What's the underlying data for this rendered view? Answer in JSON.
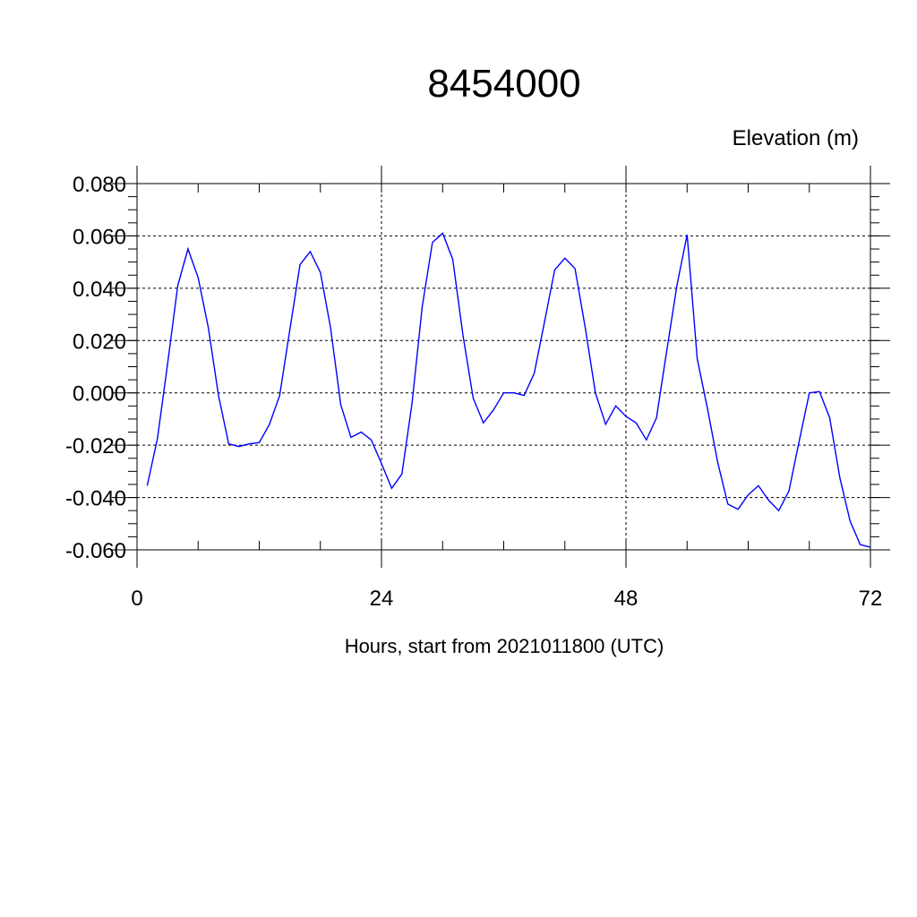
{
  "chart_data": {
    "type": "line",
    "title": "8454000",
    "ylabel": "Elevation (m)",
    "xlabel": "Hours, start from 2021011800 (UTC)",
    "xlim": [
      0,
      72
    ],
    "ylim": [
      -0.06,
      0.08
    ],
    "x_ticks": [
      0,
      24,
      48,
      72
    ],
    "x_tick_labels": [
      "0",
      "24",
      "48",
      "72"
    ],
    "y_ticks": [
      0.08,
      0.06,
      0.04,
      0.02,
      0.0,
      -0.02,
      -0.04,
      -0.06
    ],
    "y_tick_labels": [
      "0.080",
      "0.060",
      "0.040",
      "0.020",
      "0.000",
      "-0.020",
      "-0.040",
      "-0.060"
    ],
    "grid": true,
    "line_color": "#0000ff",
    "series": [
      {
        "x": [
          1,
          2,
          3,
          4,
          5,
          6,
          7,
          8,
          9,
          10,
          11,
          12,
          13,
          14,
          15,
          16,
          17,
          18,
          19,
          20,
          21,
          22,
          23,
          24,
          25,
          26,
          27,
          28,
          29,
          30,
          31,
          32,
          33,
          34,
          35,
          36,
          37,
          38,
          39,
          40,
          41,
          42,
          43,
          44,
          45,
          46,
          47,
          48,
          49,
          50,
          51,
          52,
          53,
          54,
          55,
          56,
          57,
          58,
          59,
          60,
          61,
          62,
          63,
          64,
          65,
          66,
          67,
          68,
          69,
          70,
          71,
          72
        ],
        "values": [
          -0.0355,
          -0.0175,
          0.011,
          0.041,
          0.055,
          0.044,
          0.025,
          -0.001,
          -0.0195,
          -0.0205,
          -0.0195,
          -0.019,
          -0.012,
          -0.001,
          0.024,
          0.049,
          0.054,
          0.046,
          0.025,
          -0.0045,
          -0.017,
          -0.015,
          -0.018,
          -0.027,
          -0.0365,
          -0.031,
          -0.004,
          0.033,
          0.0575,
          0.061,
          0.051,
          0.022,
          -0.002,
          -0.0115,
          -0.0065,
          0.0,
          0.0,
          -0.001,
          0.0075,
          0.027,
          0.047,
          0.0515,
          0.0475,
          0.025,
          0.0,
          -0.012,
          -0.005,
          -0.009,
          -0.0115,
          -0.018,
          -0.0095,
          0.016,
          0.041,
          0.0605,
          0.013,
          -0.006,
          -0.0265,
          -0.0425,
          -0.0445,
          -0.039,
          -0.0355,
          -0.041,
          -0.045,
          -0.0375,
          -0.0185,
          0.0,
          0.0005,
          -0.0095,
          -0.0325,
          -0.049,
          -0.058,
          -0.059
        ]
      }
    ]
  }
}
